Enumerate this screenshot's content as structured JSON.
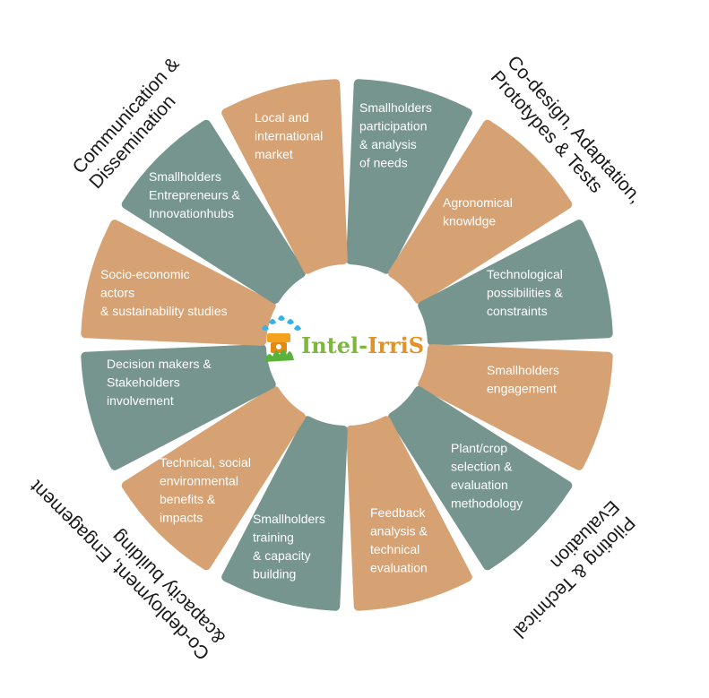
{
  "colors": {
    "teal": "#76958F",
    "tan": "#D6A273",
    "segment_text": "#FFFFFF",
    "outer_text": "#1A1A1A",
    "brand_intel": "#7DB83A",
    "brand_irris": "#E1922A",
    "brand_hyphen": "#7DB83A"
  },
  "segments": [
    {
      "label": [
        "Smallholders",
        "participation",
        "& analysis",
        "of needs"
      ],
      "color": "teal"
    },
    {
      "label": [
        "Agronomical",
        "knowldge"
      ],
      "color": "tan"
    },
    {
      "label": [
        "Technological",
        "possibilities &",
        "constraints"
      ],
      "color": "teal"
    },
    {
      "label": [
        "Smallholders",
        "engagement"
      ],
      "color": "tan"
    },
    {
      "label": [
        "Plant/crop",
        "selection &",
        "evaluation",
        "methodology"
      ],
      "color": "teal"
    },
    {
      "label": [
        "Feedback",
        "analysis &",
        "technical",
        "evaluation"
      ],
      "color": "tan"
    },
    {
      "label": [
        "Smallholders",
        "training",
        "& capacity",
        "building"
      ],
      "color": "teal"
    },
    {
      "label": [
        "Technical, social",
        "environmental",
        "benefits &",
        "impacts"
      ],
      "color": "tan"
    },
    {
      "label": [
        "Decision makers &",
        "Stakeholders",
        "involvement"
      ],
      "color": "teal"
    },
    {
      "label": [
        "Socio-economic",
        "actors",
        "& sustainability studies"
      ],
      "color": "tan"
    },
    {
      "label": [
        "Smallholders",
        "Entrepreneurs &",
        "Innovationhubs"
      ],
      "color": "teal"
    },
    {
      "label": [
        "Local and",
        "international",
        "market"
      ],
      "color": "tan"
    }
  ],
  "phases": [
    {
      "name": "co-design-label",
      "lines": [
        "Co-design, Adaptation,",
        "Prototypes & Tests"
      ]
    },
    {
      "name": "piloting-label",
      "lines": [
        "Piloting & Technical",
        "Evaluation"
      ]
    },
    {
      "name": "co-deployment-label",
      "lines": [
        "Co-deployment, Engagement",
        "&capacity building"
      ]
    },
    {
      "name": "communication-label",
      "lines": [
        "Communication &",
        "Dissemination"
      ]
    }
  ],
  "brand": {
    "part1": "Intel",
    "hyphen": "-",
    "part2": "IrriS",
    "logo_icon": "irrigation-sprinkler-plant-icon"
  }
}
